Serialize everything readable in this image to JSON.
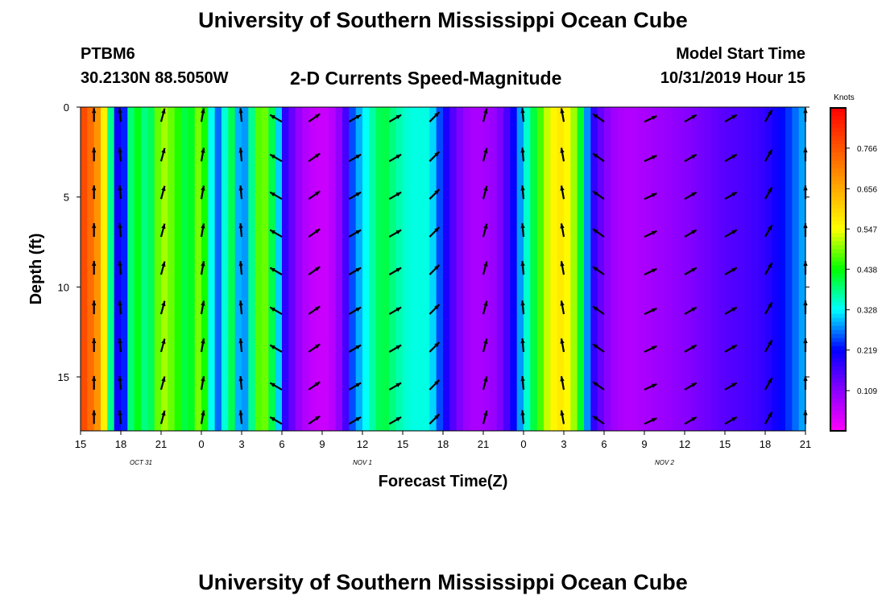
{
  "header": {
    "main_title": "University of Southern Mississippi Ocean Cube",
    "station": "PTBM6",
    "coordinates": "30.2130N 88.5050W",
    "subtitle": "2-D Currents Speed-Magnitude",
    "model_start_label": "Model Start Time",
    "model_start_value": "10/31/2019 Hour 15"
  },
  "footer": {
    "title": "University of Southern Mississippi Ocean Cube"
  },
  "chart_data": {
    "type": "heatmap",
    "title": "2-D Currents Speed-Magnitude",
    "xlabel": "Forecast Time(Z)",
    "ylabel": "Depth (ft)",
    "x_range_hours": [
      0,
      54
    ],
    "y_range_ft": [
      0,
      18
    ],
    "x_tick_hours": [
      0,
      3,
      6,
      9,
      12,
      15,
      18,
      21,
      24,
      27,
      30,
      33,
      36,
      39,
      42,
      45,
      48,
      51,
      54
    ],
    "x_tick_labels": [
      "15",
      "18",
      "21",
      "0",
      "3",
      "6",
      "9",
      "12",
      "15",
      "18",
      "21",
      "0",
      "3",
      "6",
      "9",
      "12",
      "15",
      "18",
      "21"
    ],
    "y_ticks": [
      0,
      5,
      10,
      15
    ],
    "y_tick_labels": [
      "0",
      "5",
      "10",
      "15"
    ],
    "date_labels": [
      {
        "text": "OCT 31",
        "hour": 4.5
      },
      {
        "text": "NOV 1",
        "hour": 21
      },
      {
        "text": "NOV 2",
        "hour": 43.5
      }
    ],
    "colorbar": {
      "title": "Knots",
      "range": [
        0,
        0.875
      ],
      "tick_values": [
        0.109,
        0.219,
        0.328,
        0.438,
        0.547,
        0.656,
        0.766
      ],
      "tick_labels": [
        "0.109",
        "0.219",
        "0.328",
        "0.438",
        "0.547",
        "0.656",
        "0.766"
      ],
      "colors": [
        "#ff00ff",
        "#8a00ff",
        "#0000ff",
        "#00ffff",
        "#00ff00",
        "#ffff00",
        "#ffaa00",
        "#ff5500",
        "#ff0000"
      ]
    },
    "speed_profile_knots": [
      [
        0,
        0.8
      ],
      [
        0.7,
        0.74
      ],
      [
        1.5,
        0.66
      ],
      [
        2.3,
        0.36
      ],
      [
        3.0,
        0.12
      ],
      [
        3.4,
        0.3
      ],
      [
        4.0,
        0.45
      ],
      [
        5.0,
        0.36
      ],
      [
        6.0,
        0.52
      ],
      [
        7.0,
        0.47
      ],
      [
        8.0,
        0.39
      ],
      [
        9.0,
        0.52
      ],
      [
        9.5,
        0.37
      ],
      [
        10.5,
        0.23
      ],
      [
        11.0,
        0.46
      ],
      [
        12.0,
        0.24
      ],
      [
        12.5,
        0.33
      ],
      [
        13.5,
        0.52
      ],
      [
        14.5,
        0.37
      ],
      [
        15.3,
        0.17
      ],
      [
        16.5,
        0.08
      ],
      [
        17.5,
        0.05
      ],
      [
        18.5,
        0.05
      ],
      [
        19.5,
        0.12
      ],
      [
        20.3,
        0.26
      ],
      [
        21.5,
        0.35
      ],
      [
        22.5,
        0.42
      ],
      [
        23.5,
        0.37
      ],
      [
        24.5,
        0.34
      ],
      [
        26.0,
        0.34
      ],
      [
        27.0,
        0.22
      ],
      [
        28.0,
        0.13
      ],
      [
        29.0,
        0.08
      ],
      [
        30.0,
        0.08
      ],
      [
        31.0,
        0.1
      ],
      [
        32.0,
        0.18
      ],
      [
        33.0,
        0.32
      ],
      [
        34.0,
        0.44
      ],
      [
        35.0,
        0.55
      ],
      [
        36.0,
        0.58
      ],
      [
        37.0,
        0.48
      ],
      [
        37.5,
        0.36
      ],
      [
        38.0,
        0.2
      ],
      [
        39.0,
        0.12
      ],
      [
        40.0,
        0.08
      ],
      [
        41.0,
        0.07
      ],
      [
        42.0,
        0.08
      ],
      [
        43.0,
        0.09
      ],
      [
        44.0,
        0.1
      ],
      [
        45.0,
        0.11
      ],
      [
        46.5,
        0.13
      ],
      [
        48.0,
        0.15
      ],
      [
        49.5,
        0.16
      ],
      [
        51.0,
        0.18
      ],
      [
        52.5,
        0.23
      ],
      [
        54.0,
        0.3
      ]
    ],
    "vector_columns": [
      {
        "hour": 1.0,
        "angle_deg": 90
      },
      {
        "hour": 3.0,
        "angle_deg": 95
      },
      {
        "hour": 6.0,
        "angle_deg": 75
      },
      {
        "hour": 9.0,
        "angle_deg": 80
      },
      {
        "hour": 12.0,
        "angle_deg": 95
      },
      {
        "hour": 15.0,
        "angle_deg": 150
      },
      {
        "hour": 17.0,
        "angle_deg": 35
      },
      {
        "hour": 20.0,
        "angle_deg": 30
      },
      {
        "hour": 23.0,
        "angle_deg": 30
      },
      {
        "hour": 26.0,
        "angle_deg": 45
      },
      {
        "hour": 30.0,
        "angle_deg": 75
      },
      {
        "hour": 33.0,
        "angle_deg": 95
      },
      {
        "hour": 36.0,
        "angle_deg": 100
      },
      {
        "hour": 39.0,
        "angle_deg": 145
      },
      {
        "hour": 42.0,
        "angle_deg": 25
      },
      {
        "hour": 45.0,
        "angle_deg": 30
      },
      {
        "hour": 48.0,
        "angle_deg": 30
      },
      {
        "hour": 51.0,
        "angle_deg": 60
      },
      {
        "hour": 54.0,
        "angle_deg": 90
      }
    ],
    "vector_depths_ft": [
      0.5,
      2.7,
      4.8,
      6.9,
      9.0,
      11.2,
      13.3,
      15.4,
      17.3
    ]
  }
}
